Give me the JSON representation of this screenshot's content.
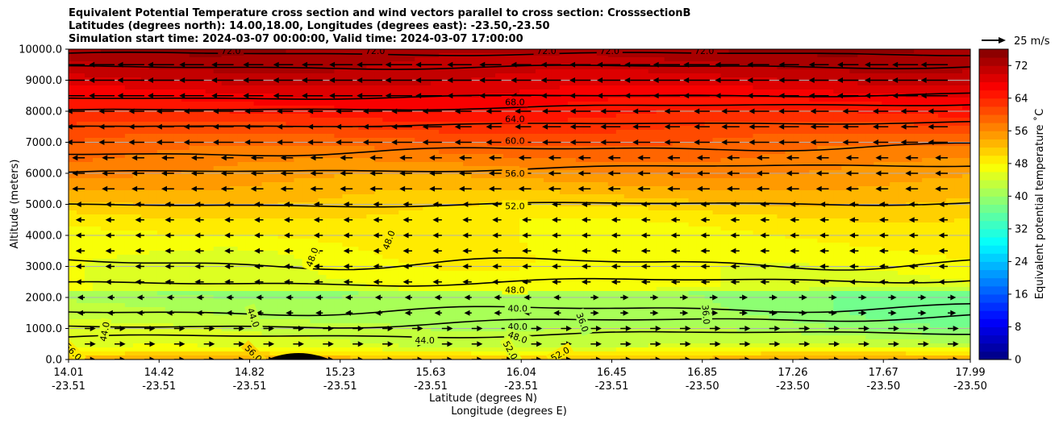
{
  "title_lines": [
    "Equivalent Potential Temperature cross section and wind vectors parallel to cross section: CrosssectionB",
    "Latitudes (degrees north): 14.00,18.00, Longitudes (degrees east): -23.50,-23.50",
    "Simulation start time: 2024-03-07 00:00:00, Valid time: 2024-03-07 17:00:00"
  ],
  "chart_data": {
    "type": "heatmap",
    "subtype": "filled contour cross section with contour lines and wind vectors",
    "ylabel": "Altitude (meters)",
    "xlabel_lat": "Latitude (degrees N)",
    "xlabel_lon": "Longitude (degrees E)",
    "ylim": [
      0,
      10000
    ],
    "y_ticks": [
      "0.0",
      "1000.0",
      "2000.0",
      "3000.0",
      "4000.0",
      "5000.0",
      "6000.0",
      "7000.0",
      "8000.0",
      "9000.0",
      "10000.0"
    ],
    "x_ticks": [
      {
        "lat": "14.01",
        "lon": "-23.51"
      },
      {
        "lat": "14.42",
        "lon": "-23.51"
      },
      {
        "lat": "14.82",
        "lon": "-23.51"
      },
      {
        "lat": "15.23",
        "lon": "-23.51"
      },
      {
        "lat": "15.63",
        "lon": "-23.51"
      },
      {
        "lat": "16.04",
        "lon": "-23.51"
      },
      {
        "lat": "16.45",
        "lon": "-23.51"
      },
      {
        "lat": "16.85",
        "lon": "-23.50"
      },
      {
        "lat": "17.26",
        "lon": "-23.50"
      },
      {
        "lat": "17.67",
        "lon": "-23.50"
      },
      {
        "lat": "17.99",
        "lon": "-23.50"
      }
    ],
    "colorbar": {
      "label": "Equivalent potential temperature ˚C",
      "range": [
        0,
        76
      ],
      "ticks": [
        "0",
        "8",
        "16",
        "24",
        "32",
        "40",
        "48",
        "56",
        "64",
        "72"
      ]
    },
    "quiver_key": "25 m/s",
    "contour_labels": [
      {
        "text": "68.0",
        "xf": 0.495,
        "alt": 8300,
        "rot": 0
      },
      {
        "text": "64.0",
        "xf": 0.495,
        "alt": 7750,
        "rot": 0
      },
      {
        "text": "60.0",
        "xf": 0.495,
        "alt": 7050,
        "rot": 0
      },
      {
        "text": "56.0",
        "xf": 0.495,
        "alt": 6000,
        "rot": 0
      },
      {
        "text": "52.0",
        "xf": 0.495,
        "alt": 4950,
        "rot": 0
      },
      {
        "text": "48.0",
        "xf": 0.495,
        "alt": 2250,
        "rot": 0
      },
      {
        "text": "40.0",
        "xf": 0.498,
        "alt": 1650,
        "rot": 0
      },
      {
        "text": "40.0",
        "xf": 0.498,
        "alt": 1070,
        "rot": 0
      },
      {
        "text": "48.0",
        "xf": 0.498,
        "alt": 720,
        "rot": 20
      },
      {
        "text": "52.0",
        "xf": 0.49,
        "alt": 300,
        "rot": 60
      },
      {
        "text": "44.0",
        "xf": 0.395,
        "alt": 620,
        "rot": 0
      },
      {
        "text": "48.0",
        "xf": 0.27,
        "alt": 3300,
        "rot": -70
      },
      {
        "text": "48.0",
        "xf": 0.355,
        "alt": 3850,
        "rot": -70
      },
      {
        "text": "44.0",
        "xf": 0.205,
        "alt": 1350,
        "rot": 70
      },
      {
        "text": "56.0",
        "xf": 0.205,
        "alt": 200,
        "rot": 45
      },
      {
        "text": "44.0",
        "xf": 0.04,
        "alt": 900,
        "rot": -80
      },
      {
        "text": "56.0",
        "xf": 0.005,
        "alt": 250,
        "rot": 45
      },
      {
        "text": "36.0",
        "xf": 0.57,
        "alt": 1200,
        "rot": 70
      },
      {
        "text": "36.0",
        "xf": 0.707,
        "alt": 1450,
        "rot": 85
      },
      {
        "text": "52.0",
        "xf": 0.545,
        "alt": 180,
        "rot": -30
      },
      {
        "text": "72.0",
        "xf": 0.53,
        "alt": 9950,
        "rot": 0
      },
      {
        "text": "72.0",
        "xf": 0.6,
        "alt": 9950,
        "rot": 0
      },
      {
        "text": "72.0",
        "xf": 0.705,
        "alt": 9950,
        "rot": 0
      },
      {
        "text": "72.0",
        "xf": 0.18,
        "alt": 9950,
        "rot": 0
      },
      {
        "text": "72.0",
        "xf": 0.34,
        "alt": 9950,
        "rot": 0
      }
    ]
  }
}
